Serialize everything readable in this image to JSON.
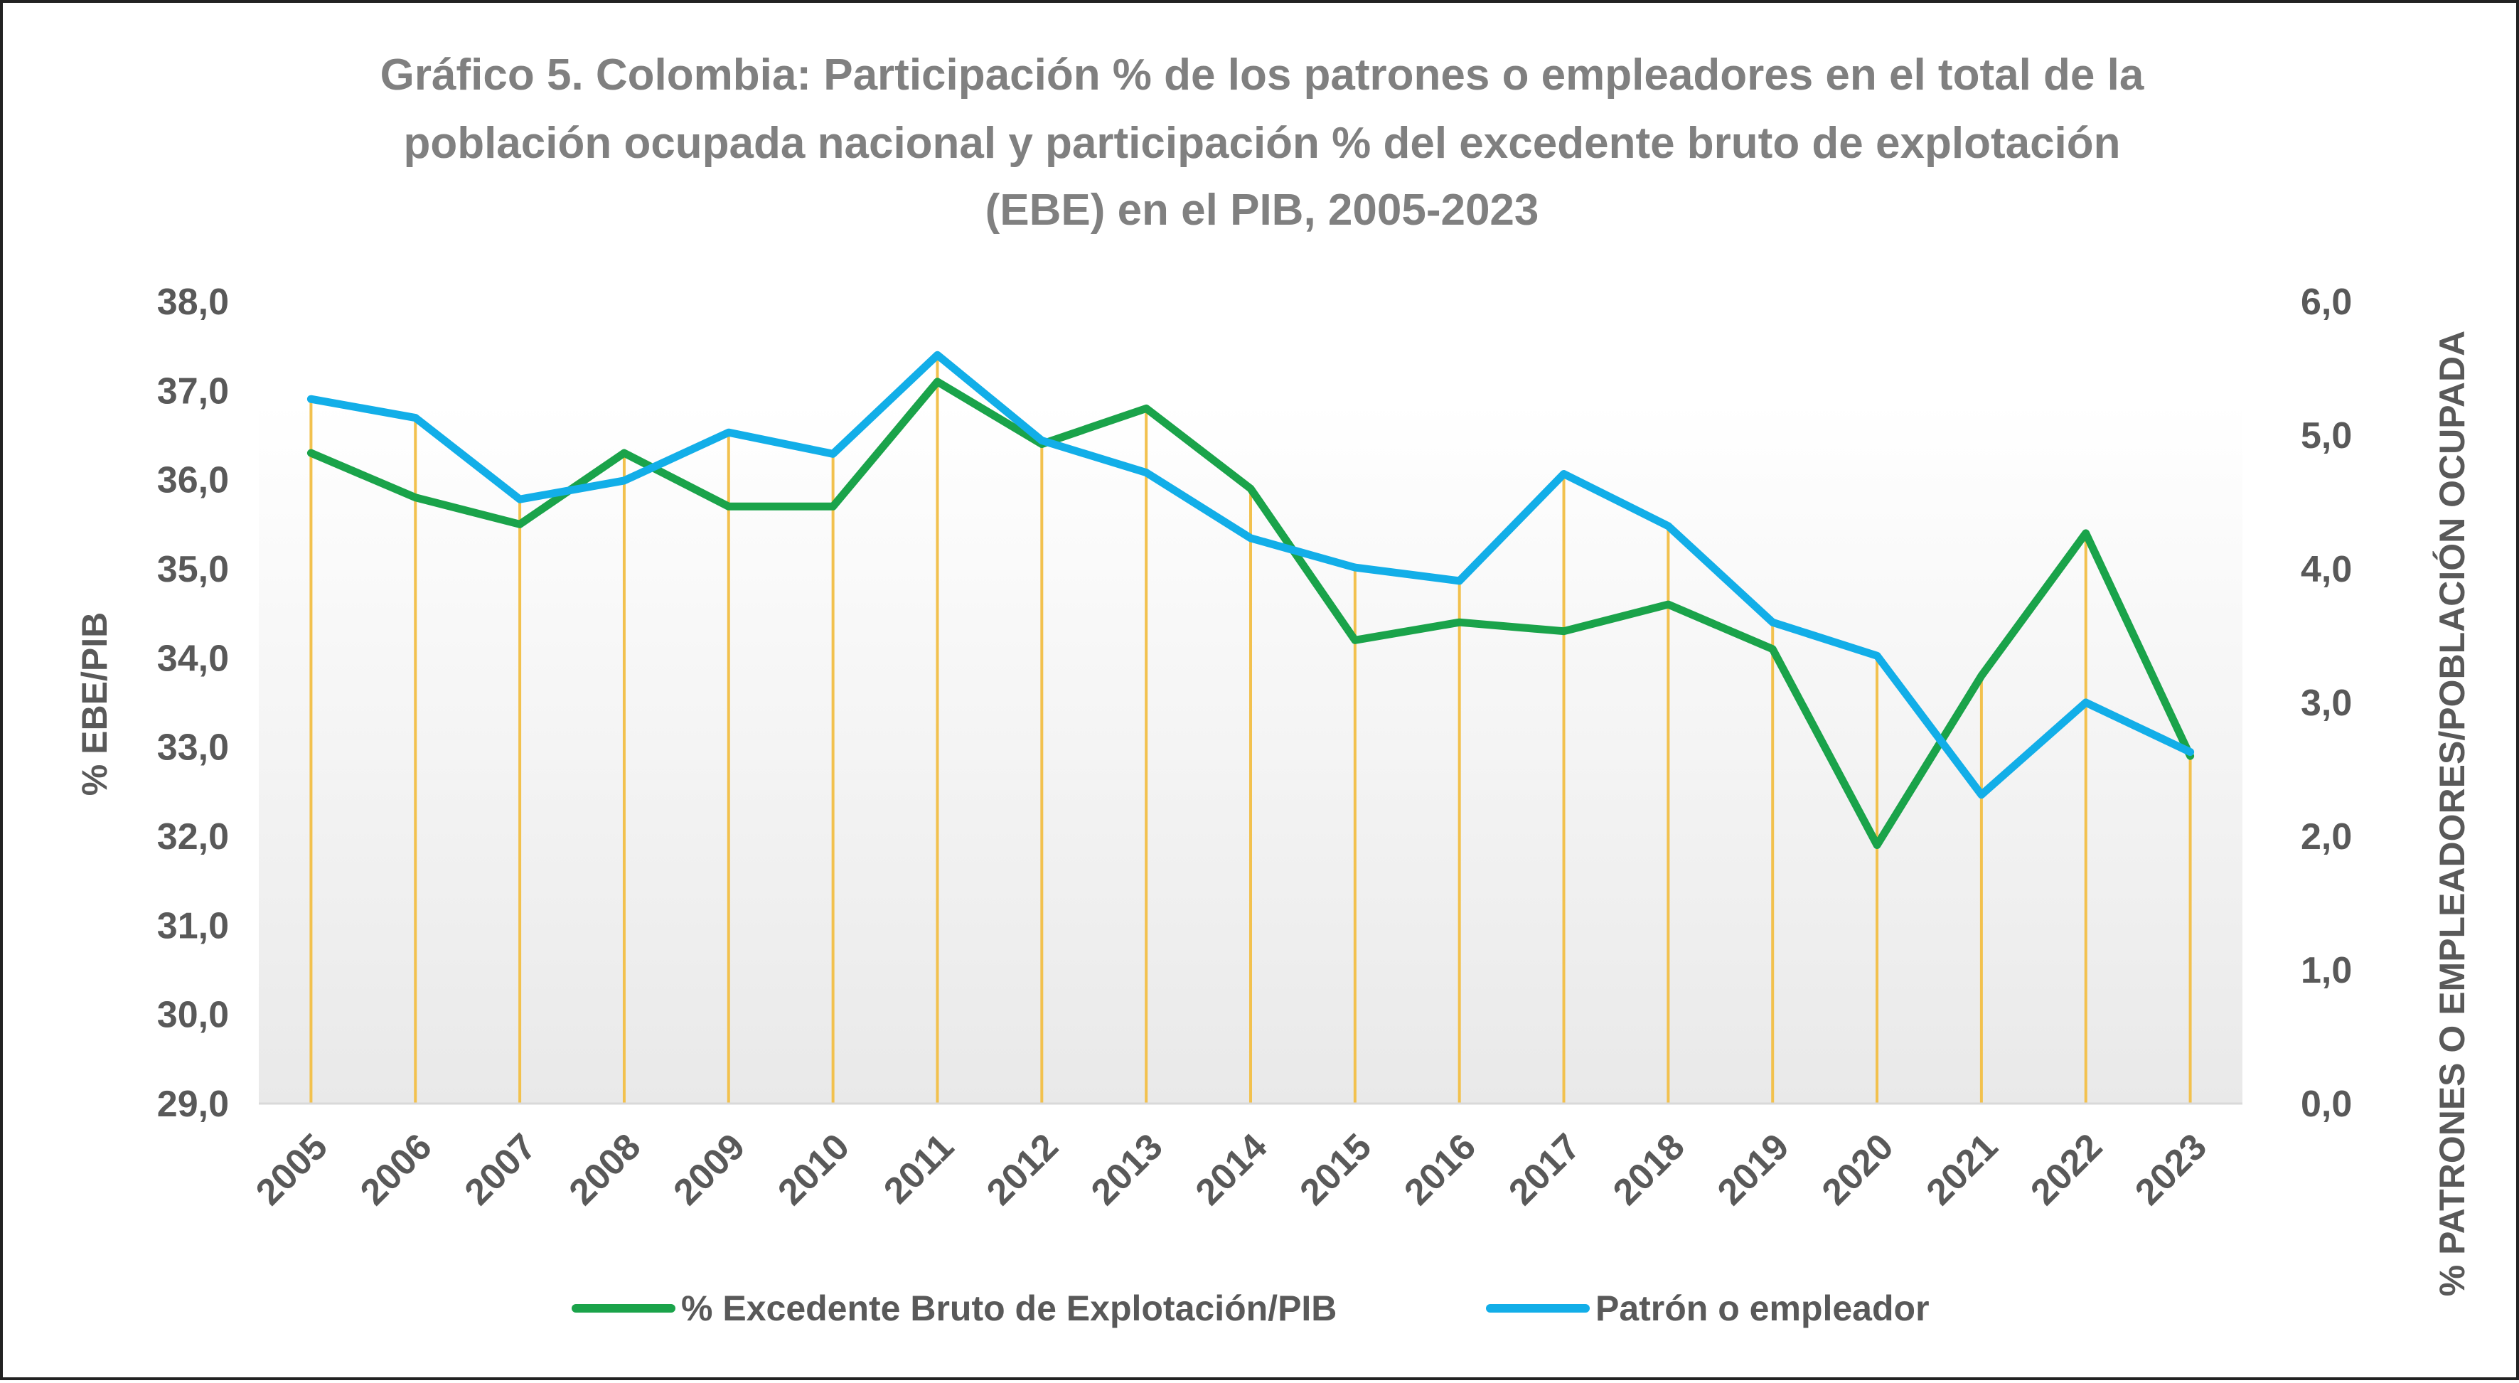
{
  "chart_data": {
    "type": "line",
    "title": [
      "Gráfico 5. Colombia: Participación % de los patrones o empleadores en el total de la",
      "población ocupada nacional y participación % del excedente bruto de explotación",
      "(EBE)  en el PIB, 2005-2023"
    ],
    "ylabel_left": "% EBE/PIB",
    "ylabel_right": "% PATRONES O EMPLEADORES/POBLACIÓN OCUPADA",
    "ylim_left": [
      29,
      38
    ],
    "ylim_right": [
      0,
      6
    ],
    "yticks_left": [
      "29,0",
      "30,0",
      "31,0",
      "32,0",
      "33,0",
      "34,0",
      "35,0",
      "36,0",
      "37,0",
      "38,0"
    ],
    "yticks_right": [
      "0,0",
      "1,0",
      "2,0",
      "3,0",
      "4,0",
      "5,0",
      "6,0"
    ],
    "categories": [
      "2005",
      "2006",
      "2007",
      "2008",
      "2009",
      "2010",
      "2011",
      "2012",
      "2013",
      "2014",
      "2015",
      "2016",
      "2017",
      "2018",
      "2019",
      "2020",
      "2021",
      "2022",
      "2023"
    ],
    "series": [
      {
        "name": "% Excedente Bruto de Explotación/PIB",
        "axis": "left",
        "color": "#1aa34a",
        "values": [
          36.3,
          35.8,
          35.5,
          36.3,
          35.7,
          35.7,
          37.1,
          36.4,
          36.8,
          35.9,
          34.2,
          34.4,
          34.3,
          34.6,
          34.1,
          31.9,
          33.8,
          35.4,
          32.9
        ]
      },
      {
        "name": "Patrón o empleador",
        "axis": "right",
        "color": "#12aee8",
        "values": [
          5.27,
          5.13,
          4.52,
          4.66,
          5.02,
          4.86,
          5.6,
          4.96,
          4.72,
          4.23,
          4.01,
          3.91,
          4.71,
          4.32,
          3.6,
          3.35,
          2.31,
          3.0,
          2.63
        ]
      }
    ],
    "drop_line_color": "#f2c14e",
    "plot_background": [
      "#ffffff",
      "#e9e9e9"
    ],
    "grid": false,
    "legend_position": "bottom"
  }
}
